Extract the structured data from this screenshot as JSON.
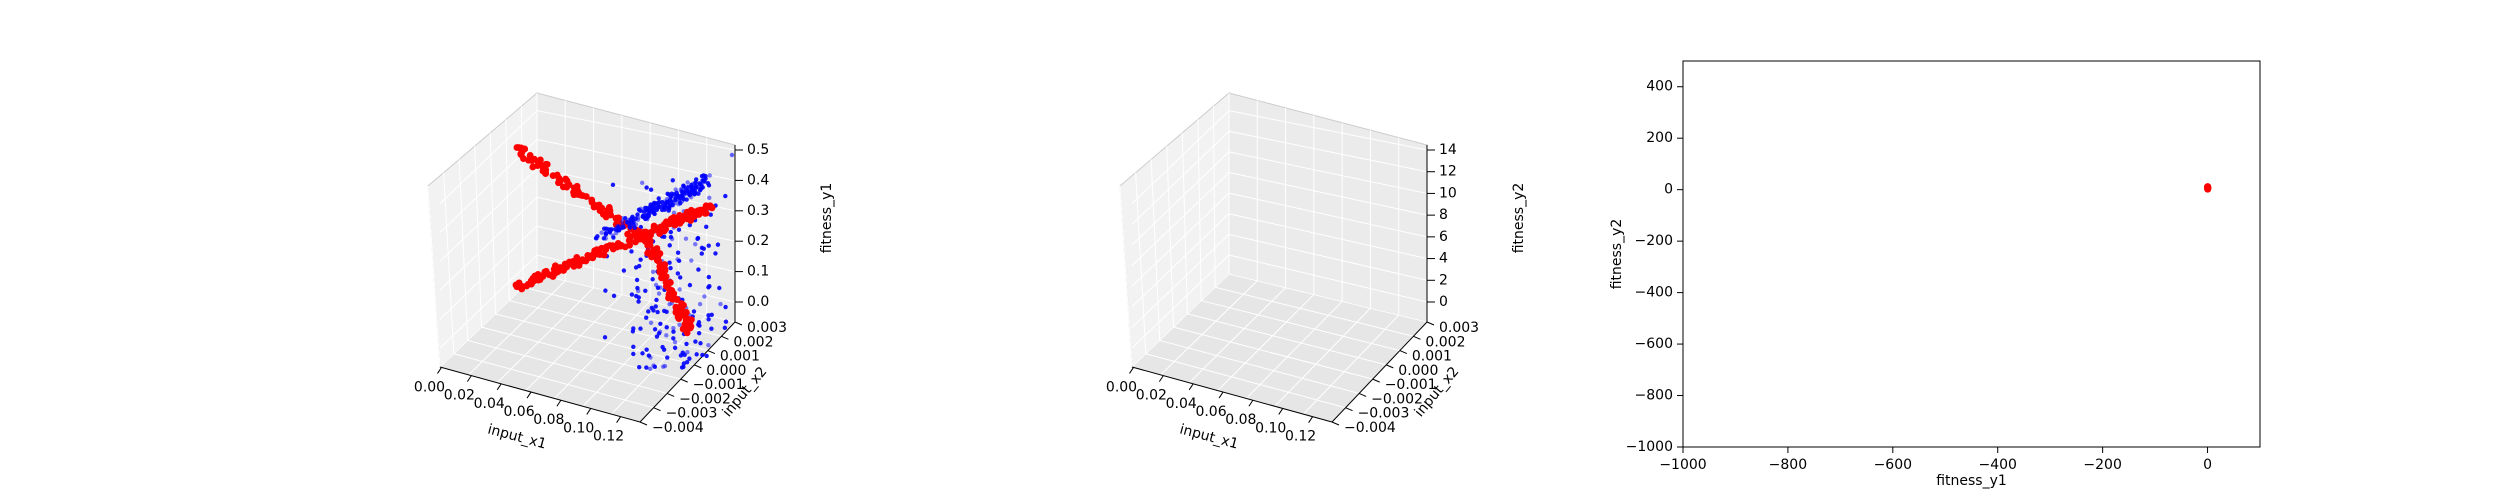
{
  "chart_data": [
    {
      "type": "scatter3d",
      "xlabel": "input_x1",
      "ylabel": "input_x2",
      "zlabel": "fitness_y1",
      "xticks": [
        "0.00",
        "0.02",
        "0.04",
        "0.06",
        "0.08",
        "0.10",
        "0.12"
      ],
      "yticks": [
        "−0.004",
        "−0.003",
        "−0.002",
        "−0.001",
        "0.000",
        "0.001",
        "0.002",
        "0.003"
      ],
      "zticks": [
        "0.0",
        "0.1",
        "0.2",
        "0.3",
        "0.4",
        "0.5"
      ],
      "xlim": [
        0,
        0.13
      ],
      "ylim": [
        -0.004,
        0.003
      ],
      "zlim": [
        0,
        0.5
      ],
      "grid": true,
      "series": [
        {
          "color": "#ff0000",
          "marker_size": "large"
        },
        {
          "color": "#0000ff",
          "marker_size": "small"
        }
      ]
    },
    {
      "type": "scatter3d",
      "xlabel": "input_x1",
      "ylabel": "input_x2",
      "zlabel": "fitness_y2",
      "xticks": [
        "0.00",
        "0.02",
        "0.04",
        "0.06",
        "0.08",
        "0.10",
        "0.12"
      ],
      "yticks": [
        "−0.004",
        "−0.003",
        "−0.002",
        "−0.001",
        "0.000",
        "0.001",
        "0.002",
        "0.003"
      ],
      "zticks": [
        "0",
        "2",
        "4",
        "6",
        "8",
        "10",
        "12",
        "14"
      ],
      "xlim": [
        0,
        0.13
      ],
      "ylim": [
        -0.004,
        0.003
      ],
      "zlim": [
        0,
        15
      ],
      "grid": true,
      "series": [
        {
          "color": "#ff0000",
          "marker_size": "large"
        },
        {
          "color": "#0000ff",
          "marker_size": "small"
        }
      ]
    },
    {
      "type": "scatter",
      "xlabel": "fitness_y1",
      "ylabel": "fitness_y2",
      "xticks": [
        "−1000",
        "−800",
        "−600",
        "−400",
        "−200",
        "0"
      ],
      "xtick_values": [
        -1000,
        -800,
        -600,
        -400,
        -200,
        0
      ],
      "yticks": [
        "−1000",
        "−800",
        "−600",
        "−400",
        "−200",
        "0",
        "200",
        "400"
      ],
      "ytick_values": [
        -1000,
        -800,
        -600,
        -400,
        -200,
        0,
        200,
        400
      ],
      "xlim": [
        -1000,
        100
      ],
      "ylim": [
        -1000,
        500
      ],
      "grid": false,
      "series": [
        {
          "color": "#ff0000",
          "points": [
            [
              0.25,
              8
            ],
            [
              0.3,
              5
            ],
            [
              0.2,
              11
            ],
            [
              0.35,
              3
            ],
            [
              0.28,
              6
            ],
            [
              0.22,
              9
            ],
            [
              0.32,
              4
            ],
            [
              0.3,
              10
            ],
            [
              0.26,
              12
            ],
            [
              0.29,
              2
            ],
            [
              0.24,
              7
            ]
          ]
        }
      ]
    }
  ]
}
